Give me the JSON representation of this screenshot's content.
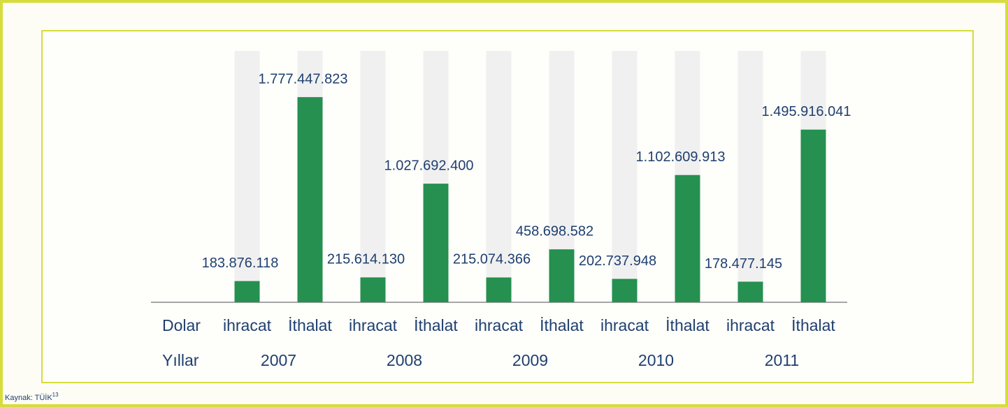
{
  "chart_data": {
    "type": "bar",
    "row_labels": [
      "Dolar",
      "Yıllar"
    ],
    "categories": [
      "2007",
      "2008",
      "2009",
      "2010",
      "2011"
    ],
    "series": [
      {
        "name": "ihracat",
        "color": "#25904f",
        "values": [
          183876118,
          215614130,
          215074366,
          202737948,
          178477145
        ],
        "value_labels": [
          "183.876.118",
          "215.614.130",
          "215.074.366",
          "202.737.948",
          "178.477.145"
        ]
      },
      {
        "name": "İthalat",
        "color": "#25904f",
        "values": [
          1777447823,
          1027692400,
          458698582,
          1102609913,
          1495916041
        ],
        "value_labels": [
          "1.777.447.823",
          "1.027.692.400",
          "458.698.582",
          "1.102.609.913",
          "1.495.916.041"
        ]
      }
    ],
    "source": "Kaynak: TÜİK",
    "source_note": "13"
  }
}
